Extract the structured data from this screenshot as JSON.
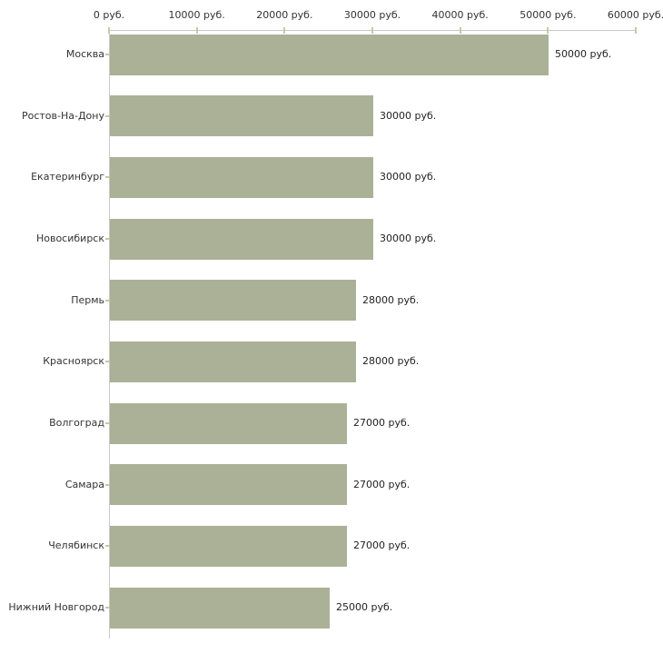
{
  "chart_data": {
    "type": "bar",
    "orientation": "horizontal",
    "title": "",
    "categories": [
      "Москва",
      "Ростов-На-Дону",
      "Екатеринбург",
      "Новосибирск",
      "Пермь",
      "Красноярск",
      "Волгоград",
      "Самара",
      "Челябинск",
      "Нижний Новгород"
    ],
    "values": [
      50000,
      30000,
      30000,
      30000,
      28000,
      28000,
      27000,
      27000,
      27000,
      25000
    ],
    "value_labels": [
      "50000 руб.",
      "30000 руб.",
      "30000 руб.",
      "30000 руб.",
      "28000 руб.",
      "28000 руб.",
      "27000 руб.",
      "27000 руб.",
      "27000 руб.",
      "25000 руб."
    ],
    "unit": "руб.",
    "x_axis": {
      "position": "top",
      "min": 0,
      "max": 60000,
      "tick_values": [
        0,
        10000,
        20000,
        30000,
        40000,
        50000,
        60000
      ],
      "tick_labels": [
        "0 руб.",
        "10000 руб.",
        "20000 руб.",
        "30000 руб.",
        "40000 руб.",
        "50000 руб.",
        "60000 руб."
      ]
    },
    "grid": false,
    "legend": false,
    "colors": {
      "bar": "#abb197",
      "axis_line": "#c9c9c9",
      "tick_mark": "#c6c9a8",
      "category_text": "#333333",
      "value_text": "#222222",
      "background": "#ffffff"
    }
  }
}
